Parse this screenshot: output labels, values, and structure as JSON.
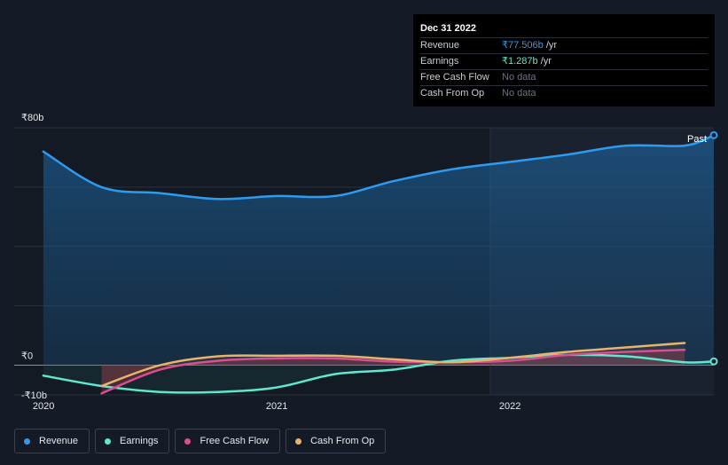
{
  "tooltip": {
    "date": "Dec 31 2022",
    "rows": [
      {
        "label": "Revenue",
        "value": "₹77.506b",
        "unit": " /yr"
      },
      {
        "label": "Earnings",
        "value": "₹1.287b",
        "unit": " /yr"
      },
      {
        "label": "Free Cash Flow",
        "value": "No data",
        "unit": ""
      },
      {
        "label": "Cash From Op",
        "value": "No data",
        "unit": ""
      }
    ]
  },
  "colors": {
    "revenue": "#2d9bf0",
    "earnings": "#5ee8cf",
    "free_cash_flow": "#d94f8f",
    "cash_from_op": "#e8b36a"
  },
  "past_label": "Past",
  "legend": [
    {
      "label": "Revenue",
      "color_key": "revenue"
    },
    {
      "label": "Earnings",
      "color_key": "earnings"
    },
    {
      "label": "Free Cash Flow",
      "color_key": "free_cash_flow"
    },
    {
      "label": "Cash From Op",
      "color_key": "cash_from_op"
    }
  ],
  "chart_data": {
    "type": "line",
    "ytick_labels": [
      "₹80b",
      "₹0",
      "-₹10b"
    ],
    "ylim": [
      -10,
      80
    ],
    "xtick_labels": [
      "2020",
      "2021",
      "2022"
    ],
    "xtick_values": [
      2020.0,
      2021.0,
      2022.0
    ],
    "xlim": [
      2019.875,
      2022.875
    ],
    "series": [
      {
        "name": "Revenue",
        "color_key": "revenue",
        "x": [
          2020.0,
          2020.25,
          2020.5,
          2020.75,
          2021.0,
          2021.25,
          2021.5,
          2021.75,
          2022.0,
          2022.25,
          2022.5,
          2022.75,
          2023.0
        ],
        "y": [
          72,
          60,
          58,
          56,
          57,
          57,
          62,
          66,
          68.5,
          71,
          74,
          74,
          77.5
        ]
      },
      {
        "name": "Earnings",
        "color_key": "earnings",
        "x": [
          2020.0,
          2020.25,
          2020.5,
          2020.75,
          2021.0,
          2021.25,
          2021.5,
          2021.75,
          2022.0,
          2022.25,
          2022.5,
          2022.75,
          2023.0
        ],
        "y": [
          -3.5,
          -7,
          -9,
          -9,
          -7.5,
          -3,
          -1.5,
          1.5,
          2.5,
          3.5,
          3,
          1,
          1.3
        ]
      },
      {
        "name": "Free Cash Flow",
        "color_key": "free_cash_flow",
        "x": [
          2020.25,
          2020.5,
          2020.75,
          2021.0,
          2021.25,
          2021.5,
          2021.75,
          2022.0,
          2022.25,
          2022.5,
          2022.75
        ],
        "y": [
          -9.5,
          -1.5,
          1.5,
          2.3,
          2.3,
          1.2,
          1,
          1.5,
          3.5,
          4.5,
          5.2
        ]
      },
      {
        "name": "Cash From Op",
        "color_key": "cash_from_op",
        "x": [
          2020.25,
          2020.5,
          2020.75,
          2021.0,
          2021.25,
          2021.5,
          2021.75,
          2022.0,
          2022.25,
          2022.5,
          2022.75
        ],
        "y": [
          -7,
          0,
          3,
          3.2,
          3.2,
          2,
          1,
          2.5,
          4.5,
          6,
          7.5
        ]
      }
    ]
  }
}
